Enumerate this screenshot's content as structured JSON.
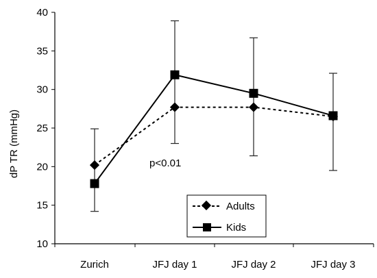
{
  "chart_data": {
    "type": "line",
    "ylabel": "dP TR (mmHg)",
    "xlabel": "",
    "ylim": [
      10,
      40
    ],
    "yticks": [
      10,
      15,
      20,
      25,
      30,
      35,
      40
    ],
    "categories": [
      "Zurich",
      "JFJ day 1",
      "JFJ day 2",
      "JFJ day 3"
    ],
    "grid": false,
    "legend_position": "bottom-center",
    "annotation": "p<0.01",
    "series": [
      {
        "name": "Adults",
        "style": "dashed",
        "marker": "diamond",
        "values": [
          20.2,
          27.7,
          27.7,
          26.5
        ]
      },
      {
        "name": "Kids",
        "style": "solid",
        "marker": "square",
        "values": [
          17.8,
          31.9,
          29.5,
          26.6
        ],
        "error_low": [
          14.2,
          23.0,
          21.4,
          19.5
        ],
        "error_high": [
          24.9,
          38.9,
          36.7,
          32.1
        ]
      }
    ]
  }
}
